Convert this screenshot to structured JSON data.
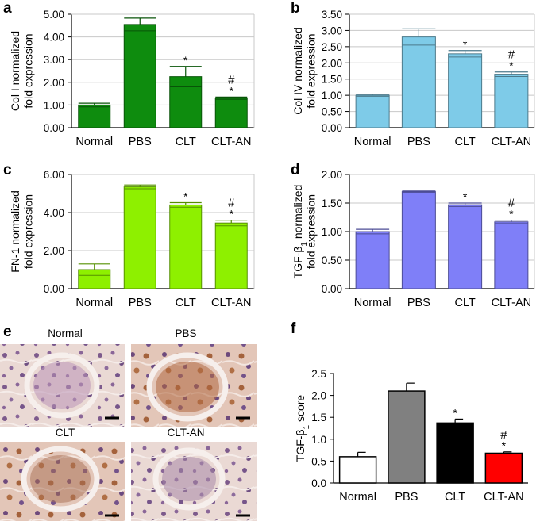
{
  "panels": {
    "a": "a",
    "b": "b",
    "c": "c",
    "d": "d",
    "e": "e",
    "f": "f"
  },
  "histology": {
    "labels": [
      "Normal",
      "PBS",
      "CLT",
      "CLT-AN"
    ]
  },
  "chart_data": [
    {
      "id": "a",
      "type": "bar",
      "ylabel_line1": "Col I normalized",
      "ylabel_line2": "fold expression",
      "categories": [
        "Normal",
        "PBS",
        "CLT",
        "CLT-AN"
      ],
      "values": [
        1.0,
        4.55,
        2.25,
        1.3
      ],
      "errors": [
        0.08,
        0.28,
        0.45,
        0.05
      ],
      "ylim": [
        0,
        5
      ],
      "yticks": [
        "0.00",
        "1.00",
        "2.00",
        "3.00",
        "4.00",
        "5.00"
      ],
      "tick_values": [
        0,
        1,
        2,
        3,
        4,
        5
      ],
      "color": "#0e8c0e",
      "annotations": [
        [
          "",
          ""
        ],
        [
          "",
          ""
        ],
        [
          "",
          "*"
        ],
        [
          "#",
          "*"
        ]
      ],
      "grid": true
    },
    {
      "id": "b",
      "type": "bar",
      "ylabel_line1": "Col IV normalized",
      "ylabel_line2": "fold expression",
      "categories": [
        "Normal",
        "PBS",
        "CLT",
        "CLT-AN"
      ],
      "values": [
        1.0,
        2.8,
        2.28,
        1.65
      ],
      "errors": [
        0.03,
        0.25,
        0.1,
        0.07
      ],
      "ylim": [
        0,
        3.5
      ],
      "yticks": [
        "0.00",
        "0.50",
        "1.00",
        "1.50",
        "2.00",
        "2.50",
        "3.00",
        "3.50"
      ],
      "tick_values": [
        0,
        0.5,
        1,
        1.5,
        2,
        2.5,
        3,
        3.5
      ],
      "color": "#7ecbe8",
      "annotations": [
        [
          "",
          ""
        ],
        [
          "",
          ""
        ],
        [
          "",
          "*"
        ],
        [
          "#",
          "*"
        ]
      ],
      "grid": true
    },
    {
      "id": "c",
      "type": "bar",
      "ylabel_line1": "FN-1 normalized",
      "ylabel_line2": "fold expression",
      "categories": [
        "Normal",
        "PBS",
        "CLT",
        "CLT-AN"
      ],
      "values": [
        1.0,
        5.35,
        4.4,
        3.45
      ],
      "errors": [
        0.3,
        0.1,
        0.12,
        0.15
      ],
      "ylim": [
        0,
        6
      ],
      "yticks": [
        "0.00",
        "2.00",
        "4.00",
        "6.00"
      ],
      "tick_values": [
        0,
        2,
        4,
        6
      ],
      "color": "#8ef000",
      "annotations": [
        [
          "",
          ""
        ],
        [
          "",
          ""
        ],
        [
          "",
          "*"
        ],
        [
          "#",
          "*"
        ]
      ],
      "grid": true
    },
    {
      "id": "d",
      "type": "bar",
      "ylabel_line1": "TGF-β",
      "ylabel_sub": "1",
      "ylabel_line1_tail": " normalized",
      "ylabel_line2": "fold expression",
      "categories": [
        "Normal",
        "PBS",
        "CLT",
        "CLT-AN"
      ],
      "values": [
        1.0,
        1.7,
        1.47,
        1.17
      ],
      "errors": [
        0.04,
        0.01,
        0.03,
        0.03
      ],
      "ylim": [
        0,
        2
      ],
      "yticks": [
        "0.00",
        "0.50",
        "1.00",
        "1.50",
        "2.00"
      ],
      "tick_values": [
        0,
        0.5,
        1,
        1.5,
        2
      ],
      "color": "#7f7ff8",
      "annotations": [
        [
          "",
          ""
        ],
        [
          "",
          ""
        ],
        [
          "",
          "*"
        ],
        [
          "#",
          "*"
        ]
      ],
      "grid": true
    },
    {
      "id": "f",
      "type": "bar",
      "ylabel_line1": "TGF-β",
      "ylabel_sub": "1",
      "ylabel_line1_tail": " score",
      "ylabel_line2": "",
      "categories": [
        "Normal",
        "PBS",
        "CLT",
        "CLT-AN"
      ],
      "values": [
        0.6,
        2.1,
        1.37,
        0.68
      ],
      "errors": [
        0.1,
        0.18,
        0.09,
        0.03
      ],
      "ylim": [
        0,
        2.5
      ],
      "yticks": [
        "0.0",
        "0.5",
        "1.0",
        "1.5",
        "2.0",
        "2.5"
      ],
      "tick_values": [
        0,
        0.5,
        1,
        1.5,
        2,
        2.5
      ],
      "colors": [
        "#ffffff",
        "#808080",
        "#000000",
        "#ff0000"
      ],
      "annotations": [
        [
          "",
          ""
        ],
        [
          "",
          ""
        ],
        [
          "",
          "*"
        ],
        [
          "#",
          "*"
        ]
      ],
      "grid": false
    }
  ]
}
